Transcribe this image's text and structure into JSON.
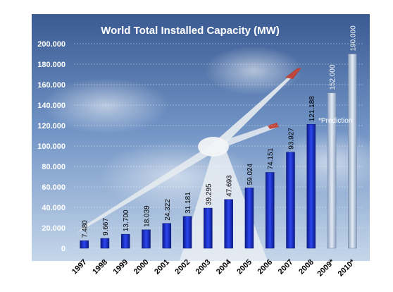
{
  "chart_data": {
    "type": "bar",
    "title": "World Total Installed Capacity (MW)",
    "categories": [
      "1997",
      "1998",
      "1999",
      "2000",
      "2001",
      "2002",
      "2003",
      "2004",
      "2005",
      "2006",
      "2007",
      "2008",
      "2009*",
      "2010*"
    ],
    "values": [
      7480,
      9667,
      13700,
      18039,
      24322,
      31181,
      39295,
      47693,
      59024,
      74151,
      93927,
      121188,
      152000,
      190000
    ],
    "value_labels": [
      "7.480",
      "9.667",
      "13.700",
      "18.039",
      "24.322",
      "31.181",
      "39.295",
      "47.693",
      "59.024",
      "74.151",
      "93.927",
      "121.188",
      "152.000",
      "190.000"
    ],
    "predicted": [
      false,
      false,
      false,
      false,
      false,
      false,
      false,
      false,
      false,
      false,
      false,
      false,
      true,
      true
    ],
    "ylim": [
      0,
      200000
    ],
    "yticks": [
      0,
      20000,
      40000,
      60000,
      80000,
      100000,
      120000,
      140000,
      160000,
      180000,
      200000
    ],
    "ytick_labels": [
      "0",
      "20.000",
      "40.000",
      "60.000",
      "80.000",
      "100.000",
      "120.000",
      "140.000",
      "160.000",
      "180.000",
      "200.000"
    ],
    "annotation": "*Prediction",
    "grid": true,
    "colors": {
      "actual": "#1a2fd0",
      "predicted": "#b8c8e0",
      "sky_top": "#3e5f96",
      "sky_bottom": "#a9c4e2"
    }
  }
}
